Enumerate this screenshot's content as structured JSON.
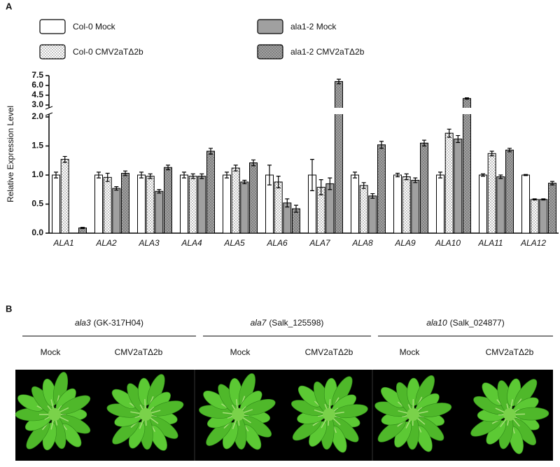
{
  "chart_data": {
    "type": "bar",
    "panel_label": "A",
    "y_label": "Relative Expression Level",
    "categories": [
      "ALA1",
      "ALA2",
      "ALA3",
      "ALA4",
      "ALA5",
      "ALA6",
      "ALA7",
      "ALA8",
      "ALA9",
      "ALA10",
      "ALA11",
      "ALA12"
    ],
    "series": [
      {
        "name": "Col-0 Mock",
        "color": "#ffffff",
        "pattern": false,
        "values": [
          1.0,
          1.0,
          1.0,
          1.0,
          1.0,
          1.0,
          1.0,
          1.0,
          1.0,
          1.0,
          1.0,
          1.0
        ],
        "errors": [
          0.05,
          0.05,
          0.05,
          0.05,
          0.05,
          0.17,
          0.27,
          0.05,
          0.03,
          0.05,
          0.02,
          0.01
        ]
      },
      {
        "name": "Col-0 CMV2aTΔ2b",
        "color": "#ffffff",
        "pattern": true,
        "values": [
          1.27,
          0.96,
          0.98,
          0.98,
          1.12,
          0.88,
          0.79,
          0.82,
          0.97,
          1.72,
          1.37,
          0.58
        ],
        "errors": [
          0.05,
          0.07,
          0.04,
          0.04,
          0.05,
          0.1,
          0.13,
          0.05,
          0.05,
          0.07,
          0.04,
          0.01
        ]
      },
      {
        "name": "ala1-2 Mock",
        "color": "#a0a0a0",
        "pattern": false,
        "values": [
          0,
          0.77,
          0.72,
          0.98,
          0.88,
          0.52,
          0.85,
          0.64,
          0.91,
          1.62,
          0.97,
          0.58
        ],
        "errors": [
          null,
          0.03,
          0.03,
          0.04,
          0.03,
          0.07,
          0.1,
          0.04,
          0.04,
          0.06,
          0.03,
          0.01
        ]
      },
      {
        "name": "ala1-2 CMV2aTΔ2b",
        "color": "#a0a0a0",
        "pattern": true,
        "values": [
          0.09,
          1.03,
          1.13,
          1.41,
          1.21,
          0.42,
          6.6,
          1.52,
          1.55,
          4.0,
          1.43,
          0.86
        ],
        "errors": [
          0.01,
          0.04,
          0.04,
          0.05,
          0.05,
          0.06,
          0.35,
          0.06,
          0.05,
          0.1,
          0.03,
          0.03
        ]
      }
    ],
    "ylim": [
      0,
      7.5
    ],
    "y_break": [
      2.0,
      3.0
    ],
    "yticks": [
      {
        "value": 0,
        "label": "0.0"
      },
      0.5,
      {
        "value": 1,
        "label": "1.0"
      },
      1.5,
      {
        "value": 2,
        "label": "2.0"
      },
      {
        "value": 3,
        "label": "3.0"
      },
      4.5,
      {
        "value": 6,
        "label": "6.0"
      },
      7.5
    ]
  },
  "panel_b": {
    "label": "B",
    "groups": [
      {
        "genotype": "ala3",
        "line": "(GK-317H04)",
        "treatments": [
          "Mock",
          "CMV2aTΔ2b"
        ]
      },
      {
        "genotype": "ala7",
        "line": "(Salk_125598)",
        "treatments": [
          "Mock",
          "CMV2aTΔ2b"
        ]
      },
      {
        "genotype": "ala10",
        "line": "(Salk_024877)",
        "treatments": [
          "Mock",
          "CMV2aTΔ2b"
        ]
      }
    ]
  }
}
